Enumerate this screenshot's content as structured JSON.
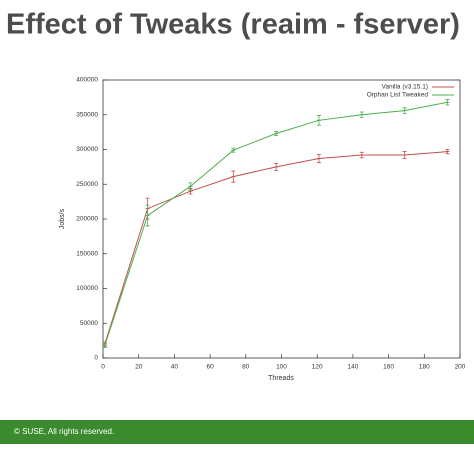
{
  "chart_data": {
    "type": "line",
    "title": "Effect of Tweaks (reaim - fserver)",
    "x_label": "Threads",
    "y_label": "Jobs/s",
    "x": [
      1,
      25,
      49,
      73,
      97,
      121,
      145,
      169,
      193
    ],
    "series": [
      {
        "name": "Vanilla (v3.15.1)",
        "color": "#c0504d",
        "values": [
          20000,
          215000,
          240000,
          261000,
          275000,
          287000,
          292000,
          292000,
          297000
        ],
        "errors": [
          3000,
          15000,
          4000,
          8000,
          5000,
          6000,
          4000,
          5000,
          3000
        ]
      },
      {
        "name": "Orphan List Tweaked",
        "color": "#4caf50",
        "values": [
          18000,
          205000,
          247000,
          299000,
          323000,
          342000,
          350000,
          356000,
          368000
        ],
        "errors": [
          3000,
          15000,
          5000,
          3000,
          3000,
          7000,
          4000,
          4000,
          4000
        ]
      }
    ],
    "xlim": [
      0,
      200
    ],
    "xticks": [
      0,
      20,
      40,
      60,
      80,
      100,
      120,
      140,
      160,
      180,
      200
    ],
    "ylim": [
      0,
      400000
    ],
    "yticks": [
      0,
      50000,
      100000,
      150000,
      200000,
      250000,
      300000,
      350000,
      400000
    ],
    "legend": "top-right"
  },
  "footer": "© SUSE, All rights reserved."
}
